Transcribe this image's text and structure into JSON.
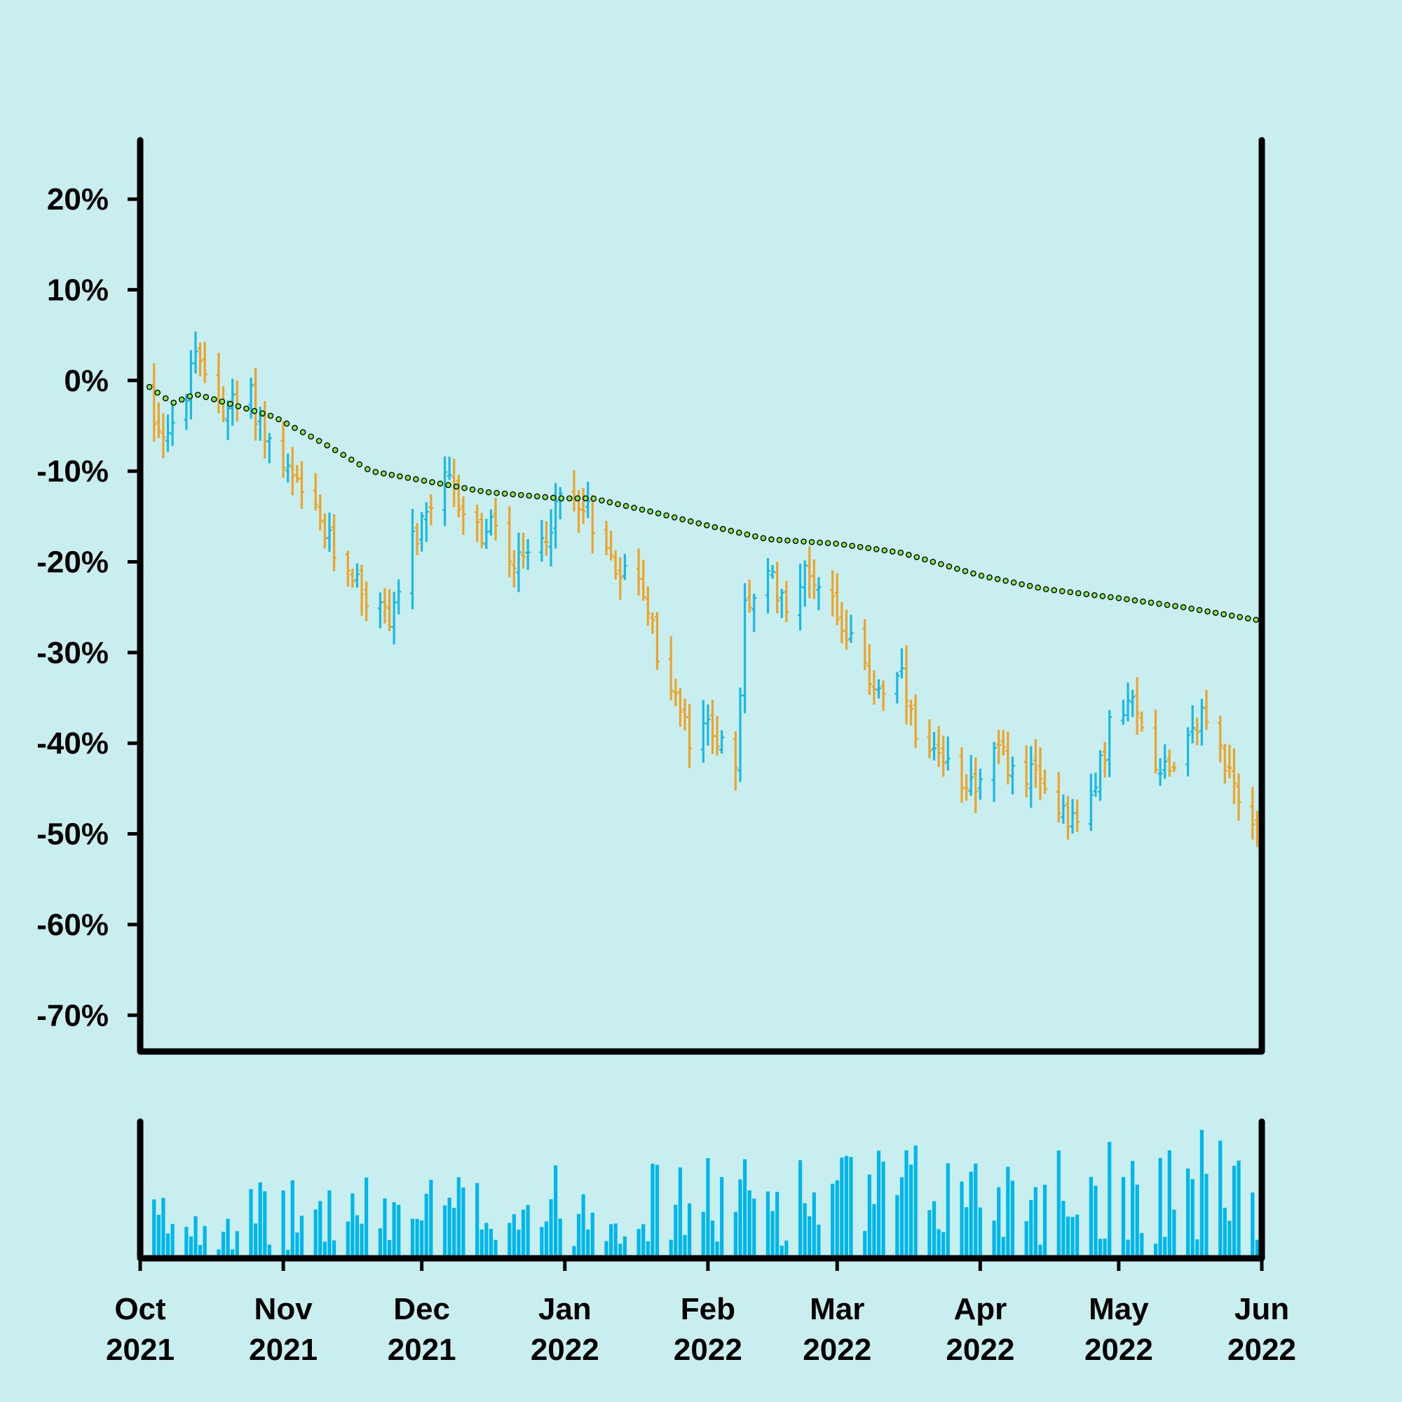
{
  "chart_data": {
    "type": "ohlc",
    "colors": {
      "up": "#1bb8e6",
      "down": "#eba42b",
      "moving_average": "#7cf04a",
      "volume": "#00b6ec",
      "axis": "#000000",
      "background": "#c9eeef"
    },
    "y_axis": {
      "format": "percent",
      "ticks": [
        20,
        10,
        0,
        -10,
        -20,
        -30,
        -40,
        -50,
        -60,
        -70
      ],
      "tick_labels": [
        "20%",
        "10%",
        "0%",
        "-10%",
        "-20%",
        "-30%",
        "-40%",
        "-50%",
        "-60%",
        "-70%"
      ],
      "range": [
        -74,
        26.5
      ]
    },
    "x_axis": {
      "range": [
        "2021-10-01",
        "2022-06-01"
      ],
      "ticks": [
        {
          "month": "Oct",
          "year": "2021",
          "date": "2021-10-01"
        },
        {
          "month": "Nov",
          "year": "2021",
          "date": "2021-11-01"
        },
        {
          "month": "Dec",
          "year": "2021",
          "date": "2021-12-01"
        },
        {
          "month": "Jan",
          "year": "2022",
          "date": "2022-01-01"
        },
        {
          "month": "Feb",
          "year": "2022",
          "date": "2022-02-01"
        },
        {
          "month": "Mar",
          "year": "2022",
          "date": "2022-03-01"
        },
        {
          "month": "Apr",
          "year": "2022",
          "date": "2022-04-01"
        },
        {
          "month": "May",
          "year": "2022",
          "date": "2022-05-01"
        },
        {
          "month": "Jun",
          "year": "2022",
          "date": "2022-06-01"
        }
      ]
    },
    "series": [
      {
        "kind": "ohlc",
        "fields": [
          "date",
          "open",
          "high",
          "low",
          "close"
        ],
        "approx_close_by_date": [
          [
            "2021-10-01",
            0
          ],
          [
            "2021-10-05",
            -5
          ],
          [
            "2021-10-08",
            -6
          ],
          [
            "2021-10-13",
            2
          ],
          [
            "2021-10-15",
            1
          ],
          [
            "2021-10-19",
            -3
          ],
          [
            "2021-10-25",
            -2
          ],
          [
            "2021-10-29",
            -7
          ],
          [
            "2021-11-04",
            -12
          ],
          [
            "2021-11-08",
            -15
          ],
          [
            "2021-11-12",
            -19
          ],
          [
            "2021-11-16",
            -21
          ],
          [
            "2021-11-19",
            -24
          ],
          [
            "2021-11-24",
            -26
          ],
          [
            "2021-11-29",
            -18
          ],
          [
            "2021-12-03",
            -15
          ],
          [
            "2021-12-06",
            -11
          ],
          [
            "2021-12-10",
            -14
          ],
          [
            "2021-12-14",
            -17
          ],
          [
            "2021-12-17",
            -16
          ],
          [
            "2021-12-21",
            -21
          ],
          [
            "2021-12-27",
            -18
          ],
          [
            "2021-12-31",
            -13
          ],
          [
            "2022-01-05",
            -13
          ],
          [
            "2022-01-10",
            -19
          ],
          [
            "2022-01-14",
            -21
          ],
          [
            "2022-01-18",
            -23
          ],
          [
            "2022-01-21",
            -30
          ],
          [
            "2022-01-25",
            -35
          ],
          [
            "2022-01-28",
            -40
          ],
          [
            "2022-02-02",
            -38
          ],
          [
            "2022-02-07",
            -44
          ],
          [
            "2022-02-09",
            -25
          ],
          [
            "2022-02-14",
            -22
          ],
          [
            "2022-02-18",
            -24
          ],
          [
            "2022-02-23",
            -21
          ],
          [
            "2022-02-28",
            -24
          ],
          [
            "2022-03-04",
            -29
          ],
          [
            "2022-03-08",
            -33
          ],
          [
            "2022-03-11",
            -34
          ],
          [
            "2022-03-15",
            -33
          ],
          [
            "2022-03-18",
            -40
          ],
          [
            "2022-03-22",
            -42
          ],
          [
            "2022-03-25",
            -43
          ],
          [
            "2022-03-31",
            -44
          ],
          [
            "2022-04-05",
            -41
          ],
          [
            "2022-04-08",
            -43
          ],
          [
            "2022-04-13",
            -44
          ],
          [
            "2022-04-19",
            -47
          ],
          [
            "2022-04-22",
            -49
          ],
          [
            "2022-04-26",
            -45
          ],
          [
            "2022-04-29",
            -38
          ],
          [
            "2022-05-04",
            -36
          ],
          [
            "2022-05-09",
            -42
          ],
          [
            "2022-05-13",
            -42
          ],
          [
            "2022-05-17",
            -38
          ],
          [
            "2022-05-20",
            -37
          ],
          [
            "2022-05-24",
            -42
          ],
          [
            "2022-05-27",
            -47
          ],
          [
            "2022-05-31",
            -50
          ]
        ]
      },
      {
        "kind": "moving_average",
        "style": "dotted-circles",
        "points": [
          [
            "2021-10-01",
            0
          ],
          [
            "2021-10-08",
            -2.5
          ],
          [
            "2021-10-13",
            -1.5
          ],
          [
            "2021-10-20",
            -2.5
          ],
          [
            "2021-10-30",
            -4
          ],
          [
            "2021-11-10",
            -7
          ],
          [
            "2021-11-20",
            -10
          ],
          [
            "2021-12-01",
            -11
          ],
          [
            "2021-12-15",
            -12.3
          ],
          [
            "2021-12-31",
            -13
          ],
          [
            "2022-01-07",
            -13
          ],
          [
            "2022-01-20",
            -14.5
          ],
          [
            "2022-02-01",
            -16
          ],
          [
            "2022-02-14",
            -17.5
          ],
          [
            "2022-03-01",
            -18
          ],
          [
            "2022-03-15",
            -19
          ],
          [
            "2022-04-01",
            -21.5
          ],
          [
            "2022-04-15",
            -23
          ],
          [
            "2022-05-01",
            -24
          ],
          [
            "2022-05-15",
            -25
          ],
          [
            "2022-06-01",
            -26.5
          ]
        ]
      },
      {
        "kind": "volume",
        "note": "daily bars in lower panel, no axis labels"
      }
    ]
  }
}
